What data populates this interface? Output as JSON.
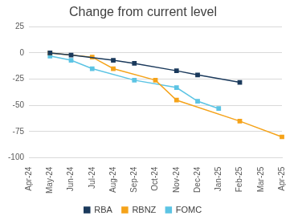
{
  "chart_data": {
    "type": "line",
    "title": "Change from current level",
    "categories": [
      "Apr-24",
      "May-24",
      "Jun-24",
      "Jul-24",
      "Aug-24",
      "Sep-24",
      "Oct-24",
      "Nov-24",
      "Dec-24",
      "Jan-25",
      "Feb-25",
      "Mar-25",
      "Apr-25"
    ],
    "series": [
      {
        "name": "RBA",
        "color": "#1b3a5c",
        "marker": "square",
        "values": [
          null,
          0,
          -2,
          null,
          -7,
          -10,
          null,
          -17,
          -21,
          null,
          -28,
          null,
          null
        ]
      },
      {
        "name": "RBNZ",
        "color": "#f5a31a",
        "marker": "square",
        "values": [
          null,
          0,
          null,
          -4,
          -15,
          null,
          -26,
          -45,
          null,
          null,
          -65,
          null,
          -80
        ]
      },
      {
        "name": "FOMC",
        "color": "#5cc4e4",
        "marker": "square",
        "values": [
          null,
          -3,
          -7,
          -15,
          null,
          -26,
          null,
          -33,
          -46,
          -53,
          null,
          null,
          null
        ]
      }
    ],
    "ylim": [
      -100,
      25
    ],
    "yticks": [
      -100,
      -75,
      -50,
      -25,
      0,
      25
    ],
    "grid": true,
    "legend": "bottom"
  }
}
